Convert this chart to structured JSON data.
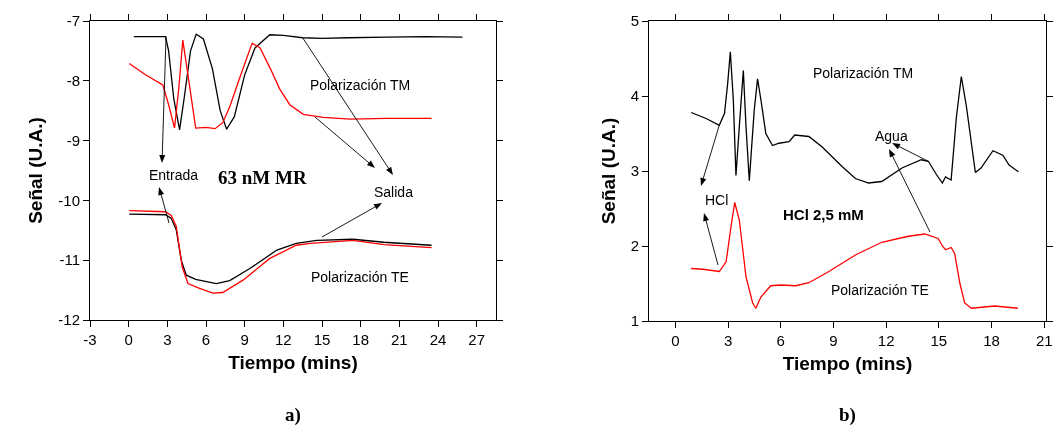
{
  "chart_data": [
    {
      "type": "line",
      "title": "a)",
      "xlabel": "Tiempo (mins)",
      "ylabel": "Señal (U.A.)",
      "xlim": [
        -3,
        28.5
      ],
      "ylim": [
        -12,
        -7
      ],
      "xticks": [
        -3,
        0,
        3,
        6,
        9,
        12,
        15,
        18,
        21,
        24,
        27
      ],
      "yticks": [
        -12,
        -11,
        -10,
        -9,
        -8,
        -7
      ],
      "grid": false,
      "marker": "none",
      "line_style": "solid",
      "series": [
        {
          "color": "#000000",
          "x": [
            0.4,
            2.86,
            3.1,
            3.5,
            3.95,
            4.3,
            4.8,
            5.24,
            5.8,
            6.5,
            7.1,
            7.6,
            8.2,
            9.0,
            9.8,
            10.95,
            12.0,
            13.5,
            15.0,
            17.0,
            20.0,
            23.0,
            25.9
          ],
          "values": [
            -7.26,
            -7.26,
            -7.5,
            -8.3,
            -8.82,
            -8.3,
            -7.5,
            -7.22,
            -7.3,
            -7.8,
            -8.5,
            -8.81,
            -8.6,
            -7.9,
            -7.45,
            -7.23,
            -7.24,
            -7.28,
            -7.29,
            -7.28,
            -7.27,
            -7.26,
            -7.27
          ]
        },
        {
          "color": "#ff0000",
          "x": [
            0.05,
            1.3,
            2.65,
            3.1,
            3.56,
            3.9,
            4.2,
            4.6,
            5.2,
            6.0,
            6.7,
            7.3,
            7.85,
            8.7,
            9.58,
            10.2,
            11.0,
            11.7,
            12.5,
            13.55,
            15.1,
            17.2,
            20.0,
            23.5
          ],
          "values": [
            -7.71,
            -7.9,
            -8.07,
            -8.4,
            -8.79,
            -8.1,
            -7.32,
            -7.9,
            -8.79,
            -8.78,
            -8.8,
            -8.7,
            -8.43,
            -7.9,
            -7.37,
            -7.45,
            -7.8,
            -8.13,
            -8.4,
            -8.56,
            -8.61,
            -8.64,
            -8.63,
            -8.63
          ]
        },
        {
          "color": "#000000",
          "x": [
            0.05,
            2.86,
            3.3,
            3.69,
            4.08,
            4.47,
            5.2,
            6.8,
            7.84,
            9.4,
            11.5,
            13.0,
            14.6,
            17.4,
            19.8,
            23.5
          ],
          "values": [
            -10.23,
            -10.24,
            -10.3,
            -10.49,
            -11.0,
            -11.25,
            -11.32,
            -11.39,
            -11.34,
            -11.14,
            -10.83,
            -10.72,
            -10.67,
            -10.65,
            -10.7,
            -10.75
          ]
        },
        {
          "color": "#ff0000",
          "x": [
            0.05,
            2.86,
            3.3,
            3.69,
            4.15,
            4.6,
            5.5,
            6.54,
            7.3,
            8.9,
            10.95,
            13.0,
            14.1,
            17.4,
            19.8,
            23.5
          ],
          "values": [
            -10.17,
            -10.19,
            -10.25,
            -10.43,
            -11.11,
            -11.39,
            -11.47,
            -11.55,
            -11.54,
            -11.33,
            -10.97,
            -10.75,
            -10.72,
            -10.67,
            -10.74,
            -10.79
          ]
        }
      ],
      "annotations": [
        "Polarización TM",
        {
          "text": "Entrada",
          "x": 2.9,
          "y": -7.26
        },
        "63 nM MR",
        {
          "text": "Salida",
          "x": 13.5,
          "y": -7.28
        },
        "Polarización TE"
      ]
    },
    {
      "type": "line",
      "title": "b)",
      "xlabel": "Tiempo (mins)",
      "ylabel": "Señal (U.A.)",
      "xlim": [
        -1.5,
        21.1
      ],
      "ylim": [
        1,
        5
      ],
      "xticks": [
        0,
        3,
        6,
        9,
        12,
        15,
        18,
        21
      ],
      "yticks": [
        1,
        2,
        3,
        4,
        5
      ],
      "grid": false,
      "marker": "none",
      "line_style": "solid",
      "series": [
        {
          "color": "#000000",
          "x": [
            0.9,
            1.75,
            2.5,
            2.8,
            2.98,
            3.13,
            3.3,
            3.45,
            3.68,
            3.87,
            4.02,
            4.21,
            4.49,
            4.68,
            4.87,
            5.15,
            5.53,
            5.9,
            6.47,
            6.8,
            7.6,
            8.36,
            9.49,
            10.25,
            11.0,
            11.75,
            12.9,
            14.0,
            14.4,
            14.87,
            15.2,
            15.38,
            15.7,
            16.0,
            16.28,
            16.57,
            17.08,
            17.4,
            18.08,
            18.64,
            19.0,
            19.53
          ],
          "values": [
            3.78,
            3.7,
            3.61,
            3.77,
            4.17,
            4.59,
            3.95,
            2.94,
            3.72,
            4.34,
            3.6,
            2.87,
            3.81,
            4.23,
            3.95,
            3.5,
            3.34,
            3.37,
            3.39,
            3.48,
            3.46,
            3.32,
            3.06,
            2.9,
            2.84,
            2.86,
            3.04,
            3.15,
            3.13,
            2.95,
            2.84,
            2.92,
            2.88,
            3.72,
            4.26,
            3.86,
            2.98,
            3.04,
            3.27,
            3.21,
            3.08,
            2.99
          ]
        },
        {
          "color": "#ff0000",
          "x": [
            0.9,
            1.57,
            2.5,
            2.89,
            3.17,
            3.38,
            3.64,
            4.02,
            4.4,
            4.58,
            4.87,
            5.43,
            6.0,
            6.85,
            7.6,
            8.74,
            10.25,
            11.75,
            13.26,
            14.2,
            14.96,
            15.2,
            15.38,
            15.7,
            15.9,
            16.2,
            16.47,
            16.85,
            18.17,
            19.5
          ],
          "values": [
            1.7,
            1.69,
            1.66,
            1.79,
            2.26,
            2.58,
            2.35,
            1.59,
            1.24,
            1.17,
            1.32,
            1.47,
            1.48,
            1.47,
            1.51,
            1.66,
            1.88,
            2.05,
            2.13,
            2.16,
            2.1,
            2.0,
            1.95,
            1.98,
            1.9,
            1.5,
            1.24,
            1.17,
            1.2,
            1.17
          ]
        }
      ],
      "annotations": [
        "Polarización TM",
        {
          "text": "Agua",
          "x": 14.4,
          "y": 3.13
        },
        {
          "text": "HCl",
          "x": 2.5,
          "y": 3.61
        },
        "HCl 2,5 mM",
        "Polarización TE"
      ]
    }
  ]
}
